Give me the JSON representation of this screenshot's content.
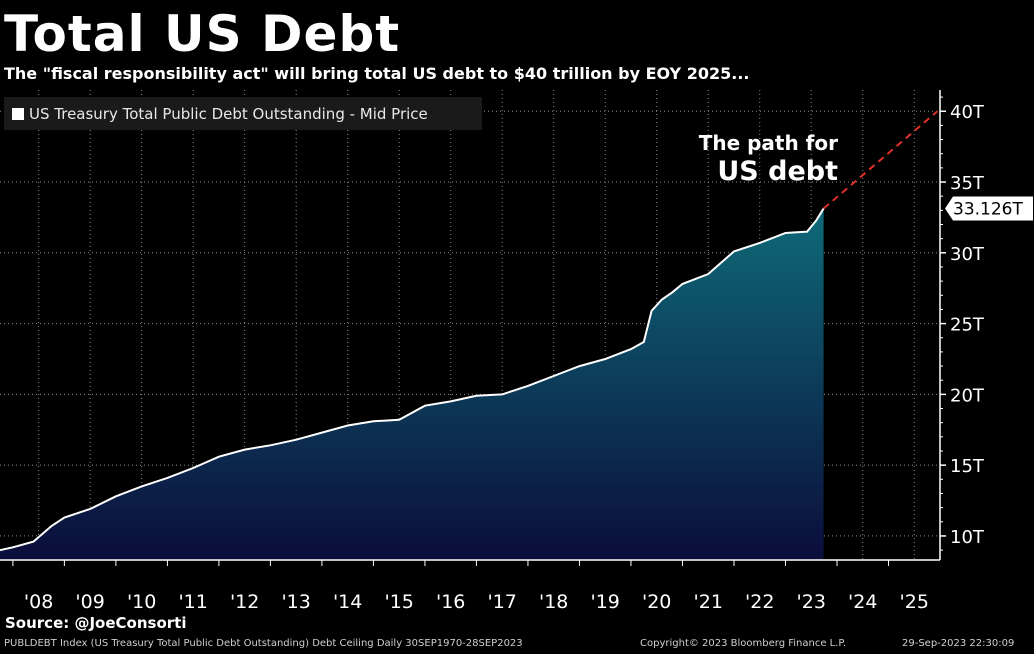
{
  "title": "Total US Debt",
  "subtitle": "The \"fiscal responsibility act\" will bring total US debt to $40 trillion by EOY 2025...",
  "legend": "US Treasury Total Public Debt Outstanding - Mid Price",
  "annotation": {
    "line1": "The path for",
    "line2": "US debt"
  },
  "last_value_label": "33.126T",
  "source": "Source: @JoeConsorti",
  "footer": {
    "left": "PUBLDEBT Index (US Treasury Total Public Debt Outstanding) Debt Ceiling  Daily 30SEP1970-28SEP2023",
    "copyright": "Copyright© 2023 Bloomberg Finance L.P.",
    "timestamp": "29-Sep-2023 22:30:09"
  },
  "colors": {
    "background": "#000000",
    "line": "#ffffff",
    "area_top": "#0e6a78",
    "area_bottom": "#0b0d3a",
    "projection": "#e0302a",
    "grid": "#8a8a8a"
  },
  "chart_data": {
    "type": "area",
    "title": "Total US Debt",
    "series": [
      {
        "name": "US Treasury Total Public Debt Outstanding - Mid Price",
        "x": [
          2007.75,
          2008.0,
          2008.4,
          2008.75,
          2009.0,
          2009.5,
          2010.0,
          2010.5,
          2011.0,
          2011.5,
          2012.0,
          2012.5,
          2013.0,
          2013.5,
          2014.0,
          2014.5,
          2015.0,
          2015.5,
          2016.0,
          2016.5,
          2017.0,
          2017.5,
          2018.0,
          2018.5,
          2019.0,
          2019.5,
          2020.0,
          2020.25,
          2020.4,
          2020.6,
          2020.8,
          2021.0,
          2021.5,
          2022.0,
          2022.5,
          2023.0,
          2023.42,
          2023.6,
          2023.74
        ],
        "y": [
          9.0,
          9.2,
          9.6,
          10.7,
          11.3,
          11.9,
          12.8,
          13.5,
          14.1,
          14.8,
          15.6,
          16.1,
          16.4,
          16.8,
          17.3,
          17.8,
          18.1,
          18.2,
          19.2,
          19.5,
          19.9,
          20.0,
          20.6,
          21.3,
          22.0,
          22.5,
          23.2,
          23.7,
          25.9,
          26.7,
          27.2,
          27.8,
          28.5,
          30.1,
          30.7,
          31.4,
          31.5,
          32.3,
          33.126
        ]
      },
      {
        "name": "projection",
        "x": [
          2023.74,
          2025.95
        ],
        "y": [
          33.126,
          40.0
        ]
      }
    ],
    "x_tick_labels": [
      "'08",
      "'09",
      "'10",
      "'11",
      "'12",
      "'13",
      "'14",
      "'15",
      "'16",
      "'17",
      "'18",
      "'19",
      "'20",
      "'21",
      "'22",
      "'23",
      "'24",
      "'25"
    ],
    "x_tick_values": [
      2008,
      2009,
      2010,
      2011,
      2012,
      2013,
      2014,
      2015,
      2016,
      2017,
      2018,
      2019,
      2020,
      2021,
      2022,
      2023,
      2024,
      2025
    ],
    "y_tick_labels": [
      "10T",
      "15T",
      "20T",
      "25T",
      "30T",
      "35T",
      "40T"
    ],
    "y_tick_values": [
      10,
      15,
      20,
      25,
      30,
      35,
      40
    ],
    "xlim": [
      2007.75,
      2026.0
    ],
    "ylim": [
      8.3,
      41.5
    ],
    "grid": true,
    "legend_position": "top-left"
  }
}
